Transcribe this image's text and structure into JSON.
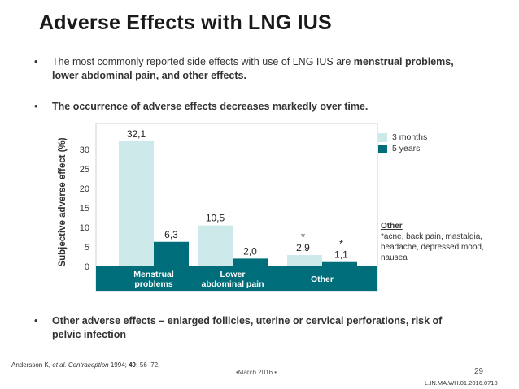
{
  "slide": {
    "title": "Adverse Effects with LNG IUS",
    "bullets": [
      {
        "normal": "The most commonly reported side effects with use of LNG IUS are ",
        "bold": "menstrual problems,  lower abdominal pain, and other effects."
      },
      {
        "bold": "The occurrence of adverse effects decreases markedly over time."
      },
      {
        "bold": "Other adverse effects – enlarged follicles, uterine or cervical perforations, risk of pelvic infection"
      }
    ],
    "bullet_char": "•",
    "citation": {
      "authors": "Andersson K, ",
      "et_al": "et al. Contraception",
      "rest": " 1994; ",
      "vol": "49:",
      "pages": " 56–72."
    },
    "footer_date": "•March 2016 •",
    "page_number": "29",
    "code": "L.IN.MA.WH.01.2016.0710",
    "other_note": {
      "heading": "Other",
      "text": "*acne, back pain, mastalgia, headache, depressed mood, nausea"
    },
    "colors": {
      "three_months": "#cde9ea",
      "five_years": "#006e7a",
      "band": "#006e7a"
    }
  },
  "chart_data": {
    "type": "bar",
    "ylabel": "Subjective adverse effect (%)",
    "ylim": [
      0,
      35
    ],
    "yticks": [
      0,
      5,
      10,
      15,
      20,
      25,
      30
    ],
    "categories": [
      [
        "Menstrual",
        "problems"
      ],
      [
        "Lower",
        "abdominal pain"
      ],
      [
        "Other"
      ]
    ],
    "series": [
      {
        "name": "3 months",
        "values": [
          32.1,
          10.5,
          2.9
        ],
        "labels": [
          "32,1",
          "10,5",
          "2,9"
        ],
        "color": "#cde9ea"
      },
      {
        "name": "5 years",
        "values": [
          6.3,
          2.0,
          1.1
        ],
        "labels": [
          "6,3",
          "2,0",
          "1,1"
        ],
        "color": "#006e7a"
      }
    ],
    "annotations": [
      "*",
      "*"
    ]
  }
}
